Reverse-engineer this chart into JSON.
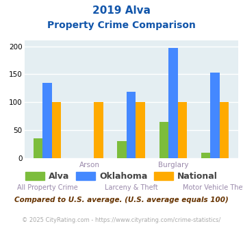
{
  "title_line1": "2019 Alva",
  "title_line2": "Property Crime Comparison",
  "categories": [
    "All Property Crime",
    "Arson",
    "Larceny & Theft",
    "Burglary",
    "Motor Vehicle Theft"
  ],
  "top_labels": [
    "",
    "Arson",
    "",
    "Burglary",
    ""
  ],
  "bottom_labels": [
    "All Property Crime",
    "",
    "Larceny & Theft",
    "",
    "Motor Vehicle Theft"
  ],
  "alva_values": [
    36,
    0,
    31,
    65,
    10
  ],
  "oklahoma_values": [
    135,
    0,
    119,
    197,
    153
  ],
  "national_values": [
    100,
    100,
    100,
    100,
    100
  ],
  "alva_color": "#7cbd3c",
  "oklahoma_color": "#4488ff",
  "national_color": "#ffaa00",
  "bg_color": "#e4eef2",
  "ylim": [
    0,
    210
  ],
  "yticks": [
    0,
    50,
    100,
    150,
    200
  ],
  "legend_labels": [
    "Alva",
    "Oklahoma",
    "National"
  ],
  "footnote1": "Compared to U.S. average. (U.S. average equals 100)",
  "footnote2": "© 2025 CityRating.com - https://www.cityrating.com/crime-statistics/",
  "title_color": "#1155aa",
  "label_color": "#9988aa",
  "footnote1_color": "#663300",
  "footnote2_color": "#aaaaaa",
  "bar_width": 0.22
}
